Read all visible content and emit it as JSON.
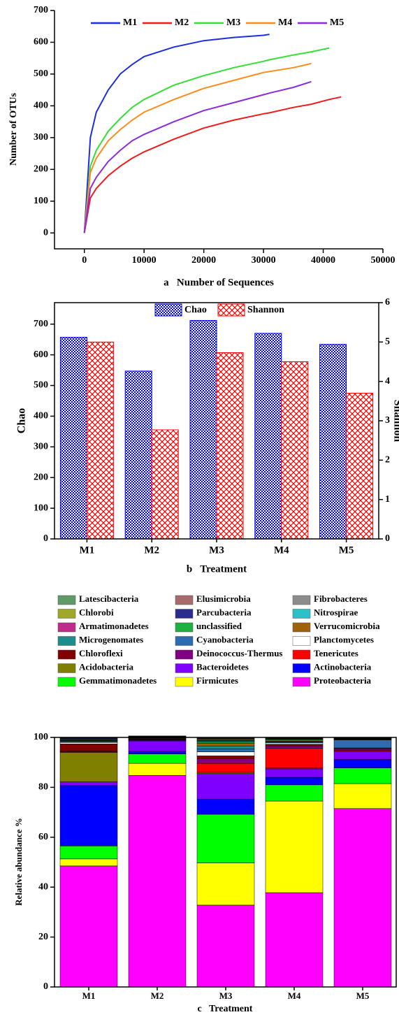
{
  "chart_data": [
    {
      "type": "line",
      "x_label": "a   Number of Sequences",
      "y_label": "Number of OTUs",
      "x": [
        0,
        1000,
        2000,
        4000,
        6000,
        8000,
        10000,
        15000,
        20000,
        25000,
        30000,
        31000,
        35000,
        38000,
        41000,
        43000
      ],
      "series": [
        {
          "name": "M1",
          "color": "#1f2ee6",
          "values": [
            0,
            300,
            380,
            450,
            500,
            530,
            555,
            585,
            605,
            615,
            622,
            625,
            null,
            null,
            null,
            null
          ]
        },
        {
          "name": "M2",
          "color": "#f01c1c",
          "values": [
            0,
            110,
            140,
            180,
            210,
            235,
            255,
            295,
            330,
            355,
            375,
            378,
            395,
            405,
            420,
            428
          ]
        },
        {
          "name": "M3",
          "color": "#33e033",
          "values": [
            0,
            210,
            260,
            320,
            360,
            395,
            420,
            465,
            495,
            520,
            540,
            545,
            560,
            570,
            582,
            null
          ]
        },
        {
          "name": "M4",
          "color": "#ff8c1a",
          "values": [
            0,
            190,
            235,
            290,
            325,
            355,
            380,
            420,
            455,
            480,
            505,
            508,
            520,
            533,
            null,
            null
          ]
        },
        {
          "name": "M5",
          "color": "#8a2be2",
          "values": [
            0,
            140,
            175,
            225,
            260,
            290,
            310,
            350,
            385,
            410,
            435,
            440,
            458,
            476,
            null,
            null
          ]
        }
      ],
      "xlim": [
        -5000,
        50000
      ],
      "xticks": [
        0,
        10000,
        20000,
        30000,
        40000,
        50000
      ],
      "ylim": [
        -50,
        700
      ],
      "yticks": [
        0,
        100,
        200,
        300,
        400,
        500,
        600,
        700
      ],
      "legend": "top"
    },
    {
      "type": "bar",
      "x_label": "b   Treatment",
      "y_label": "Chao",
      "y2_label": "Shannon",
      "categories": [
        "M1",
        "M2",
        "M3",
        "M4",
        "M5"
      ],
      "series": [
        {
          "name": "Chao",
          "color": "#0000ff",
          "values": [
            657,
            547,
            712,
            670,
            634
          ]
        },
        {
          "name": "Shannon",
          "color": "#ff0000",
          "axis": "y2",
          "values": [
            5.0,
            2.77,
            4.73,
            4.5,
            3.7
          ]
        }
      ],
      "ylim": [
        0,
        770
      ],
      "yticks": [
        0,
        100,
        200,
        300,
        400,
        500,
        600,
        700
      ],
      "y2lim": [
        0,
        6
      ],
      "y2ticks": [
        0,
        1,
        2,
        3,
        4,
        5,
        6
      ],
      "legend": "top"
    },
    {
      "type": "stacked_bar",
      "x_label": "c   Treatment",
      "y_label": "Relative abundance %",
      "categories": [
        "M1",
        "M2",
        "M3",
        "M4",
        "M5"
      ],
      "series": [
        {
          "name": "Latescibacteria",
          "color": "#5f9a68",
          "values": [
            0.1,
            0.1,
            0.2,
            0.1,
            0.1
          ]
        },
        {
          "name": "Elusimicrobia",
          "color": "#a86a6a",
          "values": [
            0.1,
            0.1,
            0.2,
            0.1,
            0.1
          ]
        },
        {
          "name": "Fibrobacteres",
          "color": "#8c8c8c",
          "values": [
            0.1,
            0.1,
            0.2,
            0.1,
            0.1
          ]
        },
        {
          "name": "Chlorobi",
          "color": "#a0a82c",
          "values": [
            0.1,
            0.1,
            0.3,
            0.2,
            0.1
          ]
        },
        {
          "name": "Parcubacteria",
          "color": "#2c2c8c",
          "values": [
            0.5,
            0.1,
            0.3,
            0.2,
            0.1
          ]
        },
        {
          "name": "Nitrospirae",
          "color": "#2cc0c8",
          "values": [
            0.1,
            0.1,
            0.3,
            0.1,
            0.1
          ]
        },
        {
          "name": "Armatimonadetes",
          "color": "#c02c8c",
          "values": [
            0.1,
            0.1,
            0.3,
            0.1,
            0.1
          ]
        },
        {
          "name": "unclassified",
          "color": "#1fb040",
          "values": [
            0.2,
            0.1,
            0.5,
            0.5,
            0.1
          ]
        },
        {
          "name": "Verrucomicrobia",
          "color": "#a0600c",
          "values": [
            0.2,
            0.2,
            1.0,
            0.3,
            0.1
          ]
        },
        {
          "name": "Microgenomates",
          "color": "#1c8c8c",
          "values": [
            0.3,
            0.1,
            1.2,
            0.2,
            0.1
          ]
        },
        {
          "name": "Cyanobacteria",
          "color": "#2c6cb0",
          "values": [
            0.2,
            0.1,
            1.2,
            0.3,
            3.2
          ]
        },
        {
          "name": "Planctomycetes",
          "color": "#ffffff",
          "values": [
            0.6,
            0.1,
            1.6,
            0.5,
            0.2
          ]
        },
        {
          "name": "Chloroflexi",
          "color": "#800000",
          "values": [
            2.9,
            0.2,
            1.2,
            0.7,
            0.3
          ]
        },
        {
          "name": "Deinococcus-Thermus",
          "color": "#800080",
          "values": [
            0.3,
            0.2,
            1.8,
            1.0,
            0.5
          ]
        },
        {
          "name": "Tenericutes",
          "color": "#ff0000",
          "values": [
            0.2,
            0.1,
            3.6,
            7.9,
            0.3
          ]
        },
        {
          "name": "Acidobacteria",
          "color": "#808000",
          "values": [
            11.8,
            0.2,
            0.5,
            0.3,
            0.3
          ]
        },
        {
          "name": "Bacteroidetes",
          "color": "#8000ff",
          "values": [
            1.5,
            4.2,
            10.2,
            3.4,
            3.1
          ]
        },
        {
          "name": "Actinobacteria",
          "color": "#0000ff",
          "values": [
            24.2,
            1.0,
            6.1,
            3.0,
            3.3
          ]
        },
        {
          "name": "Gemmatimonadetes",
          "color": "#00ff00",
          "values": [
            5.2,
            3.8,
            19.5,
            6.5,
            6.3
          ]
        },
        {
          "name": "Firmicutes",
          "color": "#ffff00",
          "values": [
            2.8,
            4.8,
            16.9,
            36.7,
            10.0
          ]
        },
        {
          "name": "Proteobacteria",
          "color": "#ff00ff",
          "values": [
            48.5,
            84.8,
            32.8,
            37.8,
            71.5
          ]
        }
      ],
      "ylim": [
        0,
        100
      ],
      "yticks": [
        0,
        20,
        40,
        60,
        80,
        100
      ],
      "legend": "top"
    }
  ]
}
